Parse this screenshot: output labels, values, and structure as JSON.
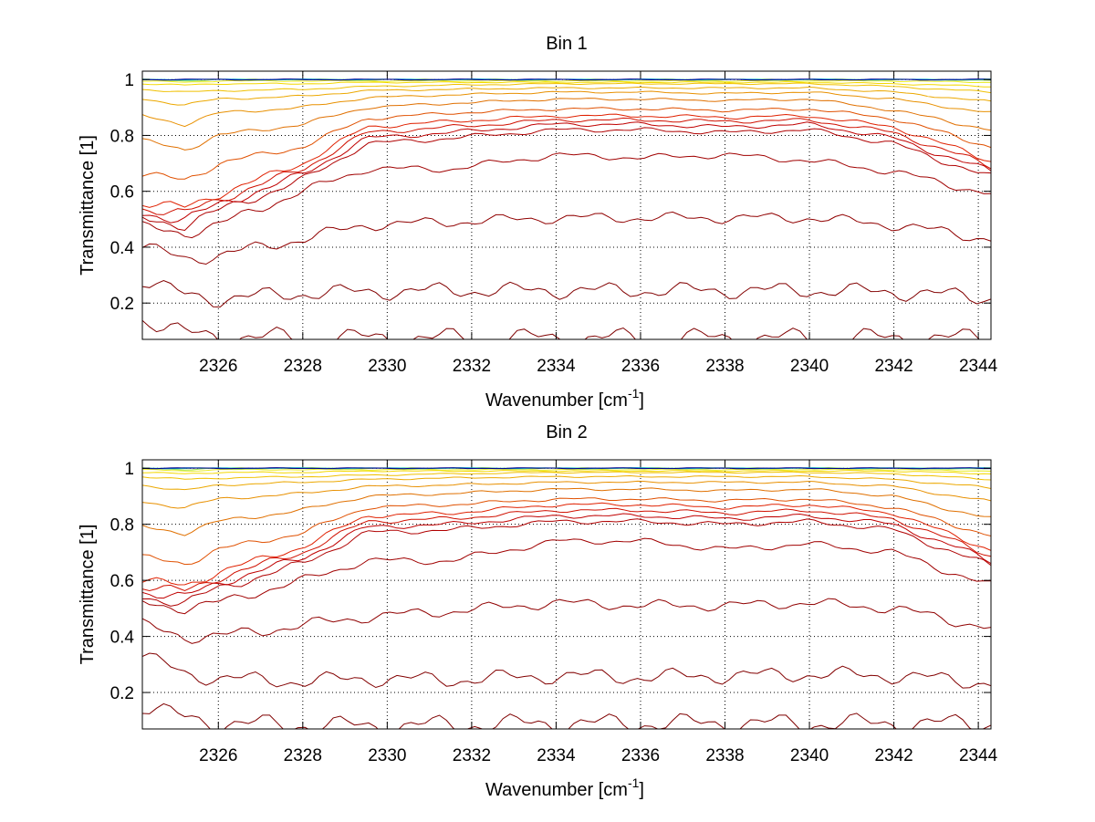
{
  "chart_data": [
    {
      "type": "line",
      "title": "Bin 1",
      "xlabel": "Wavenumber [cm",
      "xlabel_sup": "-1",
      "xlabel_end": "]",
      "ylabel": "Transmittance [1]",
      "xlim": [
        2324.2,
        2344.3
      ],
      "ylim": [
        0.07,
        1.03
      ],
      "xticks": [
        2326,
        2328,
        2330,
        2332,
        2334,
        2336,
        2338,
        2340,
        2342,
        2344
      ],
      "yticks": [
        0.2,
        0.4,
        0.6,
        0.8,
        1
      ],
      "ytick_labels": [
        "0.2",
        "0.4",
        "0.6",
        "0.8",
        "1"
      ],
      "grid": true,
      "series": [
        {
          "color": "#7f0000",
          "values": [
            0.145,
            0.09,
            0.08,
            0.075,
            0.075,
            0.075,
            0.075,
            0.075,
            0.075,
            0.075,
            0.075,
            0.075
          ]
        },
        {
          "color": "#820000",
          "values": [
            0.28,
            0.23,
            0.215,
            0.235,
            0.24,
            0.245,
            0.245,
            0.245,
            0.245,
            0.245,
            0.24,
            0.22
          ]
        },
        {
          "color": "#900000",
          "values": [
            0.4,
            0.36,
            0.37,
            0.43,
            0.48,
            0.49,
            0.505,
            0.505,
            0.505,
            0.505,
            0.48,
            0.43
          ]
        },
        {
          "color": "#a00000",
          "values": [
            0.47,
            0.45,
            0.48,
            0.6,
            0.68,
            0.68,
            0.73,
            0.72,
            0.73,
            0.71,
            0.67,
            0.59
          ]
        },
        {
          "color": "#b00000",
          "values": [
            0.5,
            0.48,
            0.53,
            0.64,
            0.77,
            0.79,
            0.82,
            0.82,
            0.81,
            0.82,
            0.77,
            0.65
          ]
        },
        {
          "color": "#c00000",
          "values": [
            0.52,
            0.5,
            0.55,
            0.66,
            0.79,
            0.81,
            0.84,
            0.84,
            0.83,
            0.84,
            0.79,
            0.67
          ]
        },
        {
          "color": "#d01000",
          "values": [
            0.54,
            0.52,
            0.57,
            0.68,
            0.81,
            0.83,
            0.855,
            0.855,
            0.85,
            0.855,
            0.81,
            0.69
          ]
        },
        {
          "color": "#e02000",
          "values": [
            0.56,
            0.54,
            0.59,
            0.7,
            0.83,
            0.85,
            0.87,
            0.87,
            0.865,
            0.87,
            0.83,
            0.71
          ]
        },
        {
          "color": "#e05000",
          "values": [
            0.66,
            0.64,
            0.7,
            0.76,
            0.86,
            0.88,
            0.895,
            0.895,
            0.89,
            0.895,
            0.86,
            0.76
          ]
        },
        {
          "color": "#e07000",
          "values": [
            0.78,
            0.75,
            0.8,
            0.84,
            0.9,
            0.915,
            0.93,
            0.93,
            0.925,
            0.93,
            0.89,
            0.82
          ]
        },
        {
          "color": "#e89000",
          "values": [
            0.87,
            0.84,
            0.88,
            0.9,
            0.935,
            0.945,
            0.955,
            0.955,
            0.95,
            0.955,
            0.93,
            0.88
          ]
        },
        {
          "color": "#eca800",
          "values": [
            0.93,
            0.91,
            0.93,
            0.94,
            0.96,
            0.965,
            0.97,
            0.97,
            0.97,
            0.97,
            0.955,
            0.92
          ]
        },
        {
          "color": "#f0c000",
          "values": [
            0.965,
            0.955,
            0.96,
            0.965,
            0.975,
            0.98,
            0.985,
            0.985,
            0.985,
            0.985,
            0.975,
            0.955
          ]
        },
        {
          "color": "#f4d800",
          "values": [
            0.985,
            0.98,
            0.985,
            0.985,
            0.99,
            0.99,
            0.99,
            0.99,
            0.99,
            0.99,
            0.985,
            0.975
          ]
        },
        {
          "color": "#e8ec20",
          "values": [
            0.995,
            0.99,
            0.995,
            0.995,
            0.995,
            0.995,
            0.995,
            0.995,
            0.995,
            0.995,
            0.995,
            0.99
          ]
        },
        {
          "color": "#a0e850",
          "values": [
            1.0,
            0.995,
            1.0,
            1.0,
            1.0,
            1.0,
            1.0,
            1.0,
            1.0,
            1.0,
            1.0,
            0.998
          ]
        },
        {
          "color": "#40d0c0",
          "values": [
            1.0,
            1.0,
            1.0,
            1.0,
            1.0,
            1.0,
            1.0,
            1.0,
            1.0,
            1.0,
            1.0,
            1.0
          ]
        },
        {
          "color": "#0080c0",
          "values": [
            1.0,
            1.0,
            1.0,
            1.0,
            1.0,
            1.0,
            1.0,
            1.0,
            1.0,
            1.0,
            1.0,
            1.0
          ]
        },
        {
          "color": "#00008f",
          "values": [
            1.0,
            1.0,
            1.0,
            1.0,
            1.0,
            1.0,
            1.0,
            1.0,
            1.0,
            1.0,
            1.0,
            1.0
          ]
        }
      ],
      "x": [
        2324.2,
        2325.2,
        2326.0,
        2328.0,
        2329.5,
        2331.5,
        2334.0,
        2336.0,
        2338.0,
        2340.0,
        2342.0,
        2344.3
      ]
    },
    {
      "type": "line",
      "title": "Bin 2",
      "xlabel": "Wavenumber [cm",
      "xlabel_sup": "-1",
      "xlabel_end": "]",
      "ylabel": "Transmittance [1]",
      "xlim": [
        2324.2,
        2344.3
      ],
      "ylim": [
        0.07,
        1.03
      ],
      "xticks": [
        2326,
        2328,
        2330,
        2332,
        2334,
        2336,
        2338,
        2340,
        2342,
        2344
      ],
      "yticks": [
        0.2,
        0.4,
        0.6,
        0.8,
        1
      ],
      "ytick_labels": [
        "0.2",
        "0.4",
        "0.6",
        "0.8",
        "1"
      ],
      "grid": true,
      "series": [
        {
          "color": "#7f0000",
          "values": [
            0.15,
            0.11,
            0.09,
            0.085,
            0.08,
            0.085,
            0.09,
            0.09,
            0.09,
            0.09,
            0.09,
            0.09
          ]
        },
        {
          "color": "#820000",
          "values": [
            0.33,
            0.27,
            0.25,
            0.24,
            0.25,
            0.245,
            0.26,
            0.255,
            0.26,
            0.265,
            0.26,
            0.235
          ]
        },
        {
          "color": "#900000",
          "values": [
            0.44,
            0.4,
            0.4,
            0.44,
            0.47,
            0.49,
            0.52,
            0.51,
            0.51,
            0.52,
            0.5,
            0.43
          ]
        },
        {
          "color": "#a00000",
          "values": [
            0.52,
            0.5,
            0.52,
            0.6,
            0.67,
            0.67,
            0.74,
            0.74,
            0.71,
            0.73,
            0.7,
            0.58
          ]
        },
        {
          "color": "#b00000",
          "values": [
            0.54,
            0.52,
            0.57,
            0.66,
            0.77,
            0.78,
            0.81,
            0.81,
            0.8,
            0.81,
            0.78,
            0.65
          ]
        },
        {
          "color": "#c00000",
          "values": [
            0.56,
            0.54,
            0.59,
            0.68,
            0.79,
            0.8,
            0.83,
            0.83,
            0.82,
            0.83,
            0.8,
            0.67
          ]
        },
        {
          "color": "#d01000",
          "values": [
            0.58,
            0.56,
            0.61,
            0.7,
            0.81,
            0.82,
            0.85,
            0.85,
            0.84,
            0.85,
            0.82,
            0.69
          ]
        },
        {
          "color": "#e02000",
          "values": [
            0.6,
            0.58,
            0.63,
            0.72,
            0.83,
            0.84,
            0.87,
            0.87,
            0.86,
            0.87,
            0.84,
            0.71
          ]
        },
        {
          "color": "#e05000",
          "values": [
            0.68,
            0.66,
            0.71,
            0.77,
            0.86,
            0.87,
            0.89,
            0.89,
            0.885,
            0.89,
            0.86,
            0.76
          ]
        },
        {
          "color": "#e07000",
          "values": [
            0.79,
            0.77,
            0.81,
            0.85,
            0.9,
            0.91,
            0.925,
            0.925,
            0.92,
            0.925,
            0.9,
            0.82
          ]
        },
        {
          "color": "#e89000",
          "values": [
            0.88,
            0.86,
            0.89,
            0.91,
            0.935,
            0.94,
            0.95,
            0.95,
            0.95,
            0.95,
            0.935,
            0.88
          ]
        },
        {
          "color": "#eca800",
          "values": [
            0.94,
            0.92,
            0.94,
            0.95,
            0.96,
            0.965,
            0.97,
            0.97,
            0.97,
            0.97,
            0.96,
            0.93
          ]
        },
        {
          "color": "#f0c000",
          "values": [
            0.97,
            0.96,
            0.965,
            0.97,
            0.975,
            0.98,
            0.985,
            0.985,
            0.985,
            0.985,
            0.98,
            0.96
          ]
        },
        {
          "color": "#f4d800",
          "values": [
            0.985,
            0.98,
            0.985,
            0.985,
            0.99,
            0.99,
            0.99,
            0.99,
            0.99,
            0.99,
            0.99,
            0.98
          ]
        },
        {
          "color": "#e8ec20",
          "values": [
            0.995,
            0.99,
            0.995,
            0.995,
            0.995,
            0.995,
            0.995,
            0.995,
            0.995,
            0.995,
            0.995,
            0.99
          ]
        },
        {
          "color": "#a0e850",
          "values": [
            1.0,
            0.995,
            1.0,
            1.0,
            1.0,
            1.0,
            1.0,
            1.0,
            1.0,
            1.0,
            1.0,
            0.998
          ]
        },
        {
          "color": "#40d0c0",
          "values": [
            1.0,
            1.0,
            1.0,
            1.0,
            1.0,
            1.0,
            1.0,
            1.0,
            1.0,
            1.0,
            1.0,
            1.0
          ]
        },
        {
          "color": "#0080c0",
          "values": [
            1.0,
            1.0,
            1.0,
            1.0,
            1.0,
            1.0,
            1.0,
            1.0,
            1.0,
            1.0,
            1.0,
            1.0
          ]
        },
        {
          "color": "#00008f",
          "values": [
            1.0,
            1.0,
            1.0,
            1.0,
            1.0,
            1.0,
            1.0,
            1.0,
            1.0,
            1.0,
            1.0,
            1.0
          ]
        }
      ],
      "x": [
        2324.2,
        2325.2,
        2326.0,
        2328.0,
        2329.5,
        2331.5,
        2334.0,
        2336.0,
        2338.0,
        2340.0,
        2342.0,
        2344.3
      ]
    }
  ]
}
